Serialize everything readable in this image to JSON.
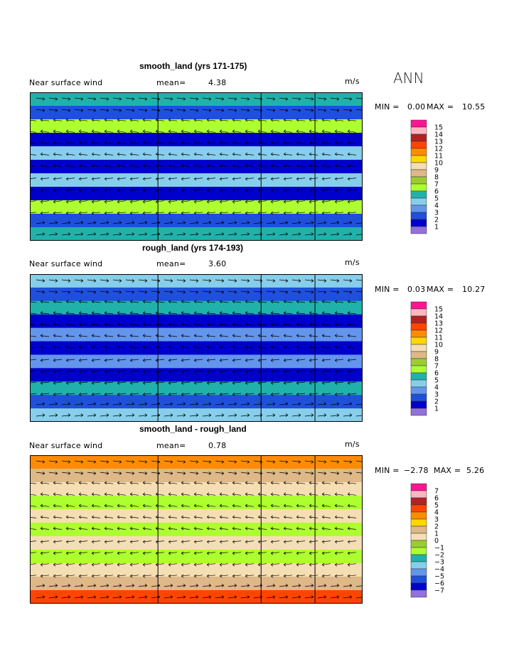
{
  "season_label": "ANN",
  "panels": [
    {
      "title": "smooth_land (yrs 171-175)",
      "variable": "Near surface wind",
      "mean_label": "mean=",
      "mean_value": "4.38",
      "units": "m/s",
      "min_label": "MIN =",
      "min_value": "0.00",
      "max_label": "MAX =",
      "max_value": "10.55",
      "levels": [
        "15",
        "14",
        "13",
        "12",
        "11",
        "10",
        "9",
        "8",
        "7",
        "6",
        "5",
        "4",
        "3",
        "2",
        "1"
      ],
      "colors": [
        "#ff1493",
        "#ffb6c1",
        "#b22222",
        "#ff4500",
        "#ff8c00",
        "#ffd700",
        "#f5deb3",
        "#deb887",
        "#9acd32",
        "#adff2f",
        "#20b2aa",
        "#87ceeb",
        "#6495ed",
        "#1e50dc",
        "#0000cd",
        "#9370db"
      ],
      "kind": "abs"
    },
    {
      "title": "rough_land (yrs 174-193)",
      "variable": "Near surface wind",
      "mean_label": "mean=",
      "mean_value": "3.60",
      "units": "m/s",
      "min_label": "MIN =",
      "min_value": "0.03",
      "max_label": "MAX =",
      "max_value": "10.27",
      "levels": [
        "15",
        "14",
        "13",
        "12",
        "11",
        "10",
        "9",
        "8",
        "7",
        "6",
        "5",
        "4",
        "3",
        "2",
        "1"
      ],
      "colors": [
        "#ff1493",
        "#ffb6c1",
        "#b22222",
        "#ff4500",
        "#ff8c00",
        "#ffd700",
        "#f5deb3",
        "#deb887",
        "#9acd32",
        "#adff2f",
        "#20b2aa",
        "#87ceeb",
        "#6495ed",
        "#1e50dc",
        "#0000cd",
        "#9370db"
      ],
      "kind": "abs"
    },
    {
      "title": "smooth_land - rough_land",
      "variable": "Near surface wind",
      "mean_label": "mean=",
      "mean_value": "0.78",
      "units": "m/s",
      "min_label": "MIN =",
      "min_value": "−2.78",
      "max_label": "MAX =",
      "max_value": "5.26",
      "levels": [
        "7",
        "6",
        "5",
        "4",
        "3",
        "2",
        "1",
        "0",
        "−1",
        "−2",
        "−3",
        "−4",
        "−5",
        "−6",
        "−7"
      ],
      "colors": [
        "#ff1493",
        "#ffb6c1",
        "#b22222",
        "#ff4500",
        "#ff8c00",
        "#ffd700",
        "#deb887",
        "#f5deb3",
        "#9acd32",
        "#adff2f",
        "#20b2aa",
        "#87ceeb",
        "#6495ed",
        "#1e50dc",
        "#0000cd",
        "#9370db"
      ],
      "kind": "diff"
    }
  ],
  "chart_data": [
    {
      "type": "heatmap",
      "title": "smooth_land (yrs 171-175)",
      "subtitle": "Near surface wind",
      "units": "m/s",
      "mean": 4.38,
      "min": 0.0,
      "max": 10.55,
      "levels": [
        1,
        2,
        3,
        4,
        5,
        6,
        7,
        8,
        9,
        10,
        11,
        12,
        13,
        14,
        15
      ],
      "latitude_band_pattern_top_to_bottom": [
        5.5,
        2.5,
        6.5,
        1.5,
        4.0,
        1.0,
        4.0,
        1.5,
        6.5,
        2.5,
        5.5
      ]
    },
    {
      "type": "heatmap",
      "title": "rough_land (yrs 174-193)",
      "subtitle": "Near surface wind",
      "units": "m/s",
      "mean": 3.6,
      "min": 0.03,
      "max": 10.27,
      "levels": [
        1,
        2,
        3,
        4,
        5,
        6,
        7,
        8,
        9,
        10,
        11,
        12,
        13,
        14,
        15
      ],
      "latitude_band_pattern_top_to_bottom": [
        4.5,
        2.0,
        5.5,
        1.5,
        3.5,
        1.0,
        3.5,
        1.5,
        5.5,
        2.0,
        4.5
      ]
    },
    {
      "type": "heatmap",
      "title": "smooth_land - rough_land",
      "subtitle": "Near surface wind",
      "units": "m/s",
      "mean": 0.78,
      "min": -2.78,
      "max": 5.26,
      "levels": [
        -7,
        -6,
        -5,
        -4,
        -3,
        -2,
        -1,
        0,
        1,
        2,
        3,
        4,
        5,
        6,
        7
      ],
      "latitude_band_pattern_top_to_bottom": [
        3.5,
        1.5,
        0.0,
        -1.2,
        0.2,
        -1.2,
        0.0,
        -1.2,
        0.5,
        1.5,
        4.0
      ]
    }
  ]
}
